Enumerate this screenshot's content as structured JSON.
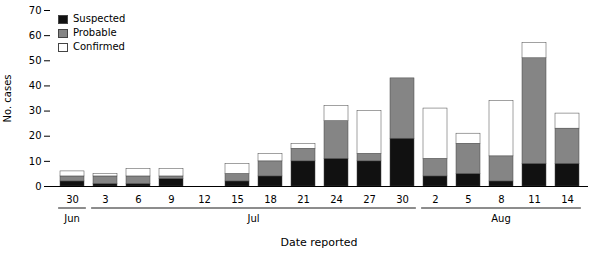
{
  "chart_data": {
    "type": "bar",
    "stacked": true,
    "categories": [
      "30",
      "3",
      "6",
      "9",
      "12",
      "15",
      "18",
      "21",
      "24",
      "27",
      "30",
      "2",
      "5",
      "8",
      "11",
      "14"
    ],
    "series": [
      {
        "name": "Suspected",
        "color": "#111111",
        "values": [
          2,
          1,
          1,
          3,
          0,
          2,
          4,
          10,
          11,
          10,
          19,
          4,
          5,
          2,
          9,
          9
        ]
      },
      {
        "name": "Probable",
        "color": "#858585",
        "values": [
          2,
          3,
          3,
          1,
          0,
          3,
          6,
          5,
          15,
          3,
          24,
          7,
          12,
          10,
          42,
          14
        ]
      },
      {
        "name": "Confirmed",
        "color": "#ffffff",
        "values": [
          2,
          1,
          3,
          3,
          0,
          4,
          3,
          2,
          6,
          17,
          0,
          20,
          4,
          22,
          6,
          6
        ]
      }
    ],
    "ylim": [
      0,
      70
    ],
    "yticks": [
      0,
      10,
      20,
      30,
      40,
      50,
      60,
      70
    ],
    "ylabel": "No. cases",
    "xlabel": "Date reported",
    "annotations": [
      {
        "text": "Jun",
        "from": 0,
        "to": 0
      },
      {
        "text": "Jul",
        "from": 1,
        "to": 10
      },
      {
        "text": "Aug",
        "from": 11,
        "to": 15
      }
    ],
    "legend": "upper left",
    "grid": false
  }
}
